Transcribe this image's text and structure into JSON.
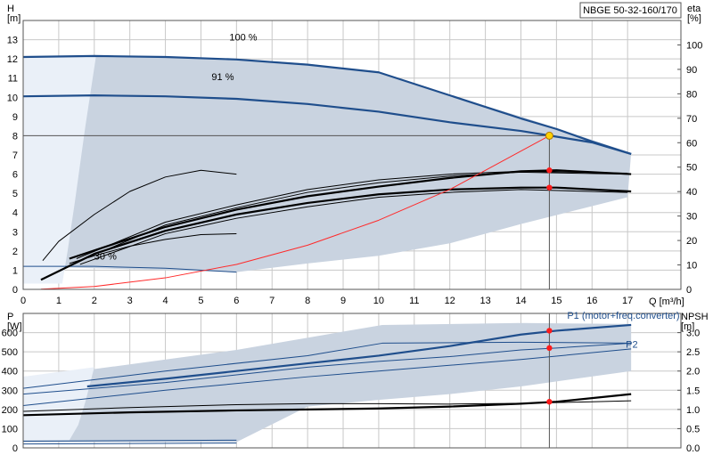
{
  "chart_data": [
    {
      "type": "line",
      "panel": "head",
      "title": "NBGE 50-32-160/170",
      "xlabel": "Q [m³/h]",
      "ylabel_left": "H\n[m]",
      "ylabel_right": "eta\n[%]",
      "xlim": [
        0,
        18.5
      ],
      "ylim": [
        0,
        14
      ],
      "eta_lim": [
        0,
        110
      ],
      "x_ticks": [
        0,
        1,
        2,
        3,
        4,
        5,
        6,
        7,
        8,
        9,
        10,
        11,
        12,
        13,
        14,
        15,
        16,
        17
      ],
      "y_ticks": [
        0,
        1,
        2,
        3,
        4,
        5,
        6,
        7,
        8,
        9,
        10,
        11,
        12,
        13
      ],
      "eta_ticks": [
        0,
        10,
        20,
        30,
        40,
        50,
        60,
        70,
        80,
        90,
        100
      ],
      "grid": true,
      "operating_point": {
        "q": 14.8,
        "h": 8.0
      },
      "region": {
        "upper": [
          [
            0,
            12.1
          ],
          [
            2,
            12.15
          ],
          [
            6,
            12.0
          ],
          [
            8,
            11.75
          ],
          [
            10.1,
            11.25
          ],
          [
            12,
            10.1
          ],
          [
            14,
            9.0
          ],
          [
            15,
            8.4
          ],
          [
            17.1,
            7.1
          ]
        ],
        "lower": [
          [
            17.1,
            7.1
          ],
          [
            17,
            4.8
          ],
          [
            14,
            3.4
          ],
          [
            12,
            2.4
          ],
          [
            10,
            1.75
          ],
          [
            8,
            1.35
          ],
          [
            6,
            0.9
          ],
          [
            0,
            1.2
          ]
        ]
      },
      "unreachable_region": [
        [
          0,
          12.1
        ],
        [
          2.05,
          12.15
        ],
        [
          1.75,
          8.5
        ],
        [
          1.45,
          4.5
        ],
        [
          1.25,
          2.0
        ],
        [
          1.1,
          0.3
        ],
        [
          0,
          0.3
        ]
      ],
      "series": [
        {
          "name": "100 %",
          "label_at": [
            5.8,
            12.95
          ],
          "style": "thick-blue",
          "points": [
            [
              0,
              12.1
            ],
            [
              2,
              12.15
            ],
            [
              4,
              12.1
            ],
            [
              6,
              11.97
            ],
            [
              8,
              11.7
            ],
            [
              10,
              11.3
            ],
            [
              12,
              10.1
            ],
            [
              14,
              8.9
            ],
            [
              15,
              8.35
            ],
            [
              16,
              7.7
            ],
            [
              17.1,
              7.05
            ]
          ]
        },
        {
          "name": "91 %",
          "label_at": [
            5.3,
            10.9
          ],
          "style": "thick-blue",
          "points": [
            [
              0,
              10.05
            ],
            [
              2,
              10.1
            ],
            [
              4,
              10.05
            ],
            [
              6,
              9.92
            ],
            [
              8,
              9.65
            ],
            [
              10,
              9.25
            ],
            [
              12,
              8.7
            ],
            [
              14,
              8.25
            ],
            [
              15,
              7.95
            ],
            [
              16,
              7.65
            ],
            [
              17.1,
              7.05
            ]
          ]
        },
        {
          "name": "30 %",
          "label_at": [
            2.0,
            1.55
          ],
          "style": "thin-blue",
          "points": [
            [
              0,
              1.2
            ],
            [
              2,
              1.2
            ],
            [
              4,
              1.1
            ],
            [
              6,
              0.9
            ]
          ]
        },
        {
          "name": "",
          "style": "thin-black",
          "points": [
            [
              0.55,
              1.5
            ],
            [
              1.0,
              2.5
            ],
            [
              2.0,
              3.9
            ],
            [
              3.0,
              5.1
            ],
            [
              4.0,
              5.85
            ],
            [
              5.0,
              6.2
            ],
            [
              6.0,
              6.0
            ]
          ]
        },
        {
          "name": "",
          "style": "thin-black",
          "points": [
            [
              1.3,
              1.35
            ],
            [
              2.0,
              1.75
            ],
            [
              3.0,
              2.25
            ],
            [
              4.0,
              2.6
            ],
            [
              5.0,
              2.85
            ],
            [
              6.0,
              2.9
            ]
          ]
        },
        {
          "name": "",
          "style": "thin-black",
          "points": [
            [
              1.5,
              1.6
            ],
            [
              4,
              3.5
            ],
            [
              6,
              4.4
            ],
            [
              8,
              5.2
            ],
            [
              10,
              5.7
            ],
            [
              12,
              6.0
            ],
            [
              14,
              6.15
            ],
            [
              17,
              6.05
            ]
          ]
        },
        {
          "name": "",
          "style": "thin-black",
          "points": [
            [
              1.6,
              1.5
            ],
            [
              4,
              3.35
            ],
            [
              6,
              4.25
            ],
            [
              8,
              5.05
            ],
            [
              10,
              5.55
            ],
            [
              12,
              5.9
            ],
            [
              14,
              6.1
            ],
            [
              17,
              6.0
            ]
          ]
        },
        {
          "name": "",
          "style": "thick-black",
          "points": [
            [
              0.5,
              0.5
            ],
            [
              2,
              1.85
            ],
            [
              4,
              3.05
            ],
            [
              6,
              3.9
            ],
            [
              8,
              4.5
            ],
            [
              10,
              4.95
            ],
            [
              12,
              5.2
            ],
            [
              14,
              5.3
            ],
            [
              15,
              5.3
            ],
            [
              17.1,
              5.1
            ]
          ]
        },
        {
          "name": "",
          "style": "thick-black",
          "points": [
            [
              1.3,
              1.6
            ],
            [
              4,
              3.25
            ],
            [
              6,
              4.15
            ],
            [
              8,
              4.85
            ],
            [
              10,
              5.35
            ],
            [
              12,
              5.8
            ],
            [
              14,
              6.15
            ],
            [
              15,
              6.2
            ],
            [
              17.1,
              6.0
            ]
          ]
        },
        {
          "name": "",
          "style": "thin-black",
          "points": [
            [
              1.6,
              1.3
            ],
            [
              4,
              2.9
            ],
            [
              6,
              3.7
            ],
            [
              8,
              4.3
            ],
            [
              10,
              4.8
            ],
            [
              12,
              5.05
            ],
            [
              14,
              5.2
            ],
            [
              17,
              5.05
            ]
          ]
        },
        {
          "name": "",
          "style": "system-curve",
          "points": [
            [
              0.5,
              0.01
            ],
            [
              2,
              0.15
            ],
            [
              4,
              0.6
            ],
            [
              6,
              1.3
            ],
            [
              8,
              2.3
            ],
            [
              10,
              3.6
            ],
            [
              12,
              5.2
            ],
            [
              13,
              6.2
            ],
            [
              14,
              7.2
            ],
            [
              14.8,
              8.0
            ]
          ]
        }
      ],
      "markers": [
        {
          "q": 14.8,
          "h": 8.0,
          "kind": "operating"
        },
        {
          "q": 14.8,
          "h": 6.2,
          "kind": "red"
        },
        {
          "q": 14.8,
          "h": 5.3,
          "kind": "red"
        }
      ]
    },
    {
      "type": "line",
      "panel": "power",
      "xlim": [
        0,
        18.5
      ],
      "ylabel_left": "P\n[W]",
      "ylabel_right": "NPSH\n[m]",
      "ylim": [
        0,
        700
      ],
      "npsh_lim": [
        0,
        3.5
      ],
      "y_ticks": [
        0,
        100,
        200,
        300,
        400,
        500,
        600
      ],
      "npsh_ticks": [
        "0.0",
        "0.5",
        "1.0",
        "1.5",
        "2.0",
        "2.5",
        "3.0"
      ],
      "grid": true,
      "region": {
        "upper": [
          [
            0,
            370
          ],
          [
            2,
            410
          ],
          [
            6,
            510
          ],
          [
            10.1,
            640
          ],
          [
            14,
            650
          ],
          [
            17.1,
            645
          ]
        ],
        "lower": [
          [
            17.1,
            645
          ],
          [
            17.1,
            400
          ],
          [
            14,
            320
          ],
          [
            12,
            280
          ],
          [
            10,
            250
          ],
          [
            8,
            215
          ],
          [
            6,
            30
          ],
          [
            0,
            30
          ]
        ]
      },
      "unreachable_region": [
        [
          0,
          370
        ],
        [
          2,
          420
        ],
        [
          1.75,
          240
        ],
        [
          1.55,
          120
        ],
        [
          1.3,
          40
        ],
        [
          0,
          40
        ]
      ],
      "series": [
        {
          "name": "P1 (motor+freq.converter)",
          "label_at": [
            15.3,
            672
          ],
          "style": "thick-blue",
          "points": [
            [
              1.8,
              320
            ],
            [
              4,
              360
            ],
            [
              6,
              400
            ],
            [
              8,
              440
            ],
            [
              10,
              480
            ],
            [
              12,
              530
            ],
            [
              14,
              590
            ],
            [
              15,
              610
            ],
            [
              17.1,
              640
            ]
          ]
        },
        {
          "name": "P2",
          "label_at": [
            16.95,
            522
          ],
          "style": "thin-blue",
          "points": [
            [
              0,
              280
            ],
            [
              4,
              340
            ],
            [
              6,
              380
            ],
            [
              8,
              420
            ],
            [
              10,
              450
            ],
            [
              12,
              475
            ],
            [
              14,
              510
            ],
            [
              15,
              520
            ],
            [
              17.1,
              545
            ]
          ]
        },
        {
          "name": "",
          "style": "thin-blue",
          "points": [
            [
              0,
              310
            ],
            [
              4,
              400
            ],
            [
              8,
              480
            ],
            [
              10.1,
              545
            ],
            [
              14,
              550
            ],
            [
              17.1,
              545
            ]
          ]
        },
        {
          "name": "",
          "style": "thin-blue",
          "points": [
            [
              0,
              220
            ],
            [
              4,
              300
            ],
            [
              8,
              370
            ],
            [
              10,
              400
            ],
            [
              14,
              460
            ],
            [
              17.1,
              515
            ]
          ]
        },
        {
          "name": "",
          "style": "thin-black",
          "points": [
            [
              0,
              190
            ],
            [
              3,
              210
            ],
            [
              6,
              225
            ],
            [
              8,
              230
            ],
            [
              10,
              230
            ],
            [
              12,
              228
            ],
            [
              14,
              232
            ],
            [
              16,
              240
            ],
            [
              17.1,
              245
            ]
          ]
        },
        {
          "name": "",
          "style": "thick-black",
          "points": [
            [
              0,
              170
            ],
            [
              3,
              185
            ],
            [
              6,
              195
            ],
            [
              8,
              200
            ],
            [
              10,
              205
            ],
            [
              12,
              215
            ],
            [
              14,
              230
            ],
            [
              15,
              240
            ],
            [
              17.1,
              280
            ]
          ]
        },
        {
          "name": "",
          "style": "thin-blue",
          "points": [
            [
              0,
              35
            ],
            [
              6,
              40
            ]
          ]
        },
        {
          "name": "",
          "style": "thin-blue",
          "points": [
            [
              0,
              20
            ],
            [
              6,
              25
            ]
          ]
        }
      ],
      "markers": [
        {
          "q": 14.8,
          "p": 610,
          "kind": "red"
        },
        {
          "q": 14.8,
          "p": 520,
          "kind": "red"
        },
        {
          "q": 14.8,
          "p": 240,
          "kind": "red"
        }
      ]
    }
  ]
}
